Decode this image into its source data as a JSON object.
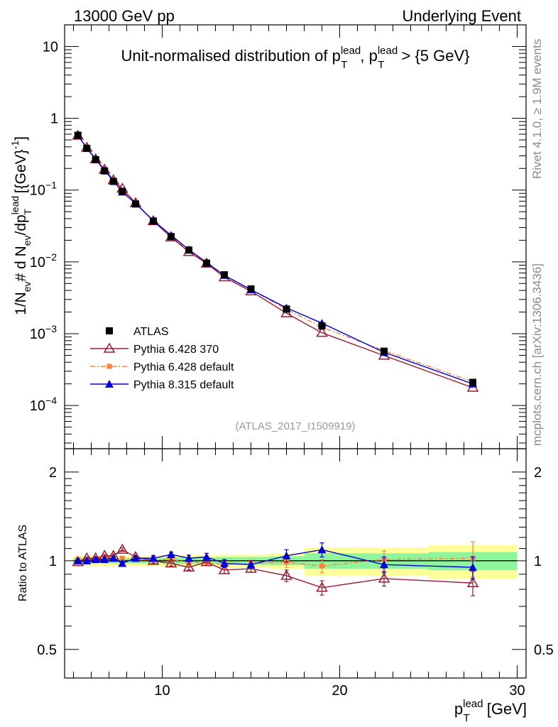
{
  "header": {
    "left": "13000 GeV pp",
    "right": "Underlying Event"
  },
  "side_text": {
    "rivet": "Rivet 4.1.0, ≥ 1.9M events",
    "mcplots": "mcplots.cern.ch [arXiv:1306.3436]"
  },
  "colors": {
    "atlas": "#000000",
    "py6_370": "#9b1b30",
    "py6_default": "#ff8040",
    "py8_default": "#0000dd",
    "band_green": "#8ff59c",
    "band_yellow": "#ffff99"
  },
  "chart_data": [
    {
      "type": "line",
      "title": "Unit-normalised distribution of p_T^lead, p_T^lead > {5 GeV}",
      "title_parts": {
        "prefix": "Unit-normalised distribution of p",
        "sup": "lead",
        "sub": "T",
        "mid": ", p",
        "suffix": " > {5 GeV}"
      },
      "ylabel": "1/N_ev # d N_ev/dp_T^lead [{GeV}^-1]",
      "ylabel_parts": {
        "a": "1/N",
        "a_sub": "ev",
        "b": "# d N",
        "b_sub": "ev",
        "c": "/dp",
        "c_sup": "lead",
        "c_sub": "T",
        "d": "[{GeV}",
        "d_sup": "-1",
        "e": "]"
      },
      "yscale": "log",
      "ylim": [
        2.5e-05,
        20
      ],
      "xlim": [
        4.5,
        30.5
      ],
      "y_ticks": [
        {
          "v": 10,
          "base": "10",
          "exp": ""
        },
        {
          "v": 1,
          "base": "1",
          "exp": ""
        },
        {
          "v": 0.1,
          "base": "10",
          "exp": "−1"
        },
        {
          "v": 0.01,
          "base": "10",
          "exp": "−2"
        },
        {
          "v": 0.001,
          "base": "10",
          "exp": "−3"
        },
        {
          "v": 0.0001,
          "base": "10",
          "exp": "−4"
        }
      ],
      "watermark": "(ATLAS_2017_I1509919)",
      "legend": {
        "position": "lower-left",
        "entries": [
          {
            "name": "ATLAS",
            "series": "atlas"
          },
          {
            "name": "Pythia 6.428 370",
            "series": "py6_370"
          },
          {
            "name": "Pythia 6.428 default",
            "series": "py6_default"
          },
          {
            "name": "Pythia 8.315 default",
            "series": "py8_default"
          }
        ]
      },
      "x": [
        5.25,
        5.75,
        6.25,
        6.75,
        7.25,
        7.75,
        8.5,
        9.5,
        10.5,
        11.5,
        12.5,
        13.5,
        15.0,
        17.0,
        19.0,
        22.5,
        27.5
      ],
      "series": [
        {
          "name": "ATLAS",
          "key": "atlas",
          "marker": "square",
          "values": [
            0.58,
            0.38,
            0.265,
            0.185,
            0.132,
            0.096,
            0.064,
            0.037,
            0.0225,
            0.0146,
            0.0096,
            0.0066,
            0.0042,
            0.0022,
            0.00128,
            0.00057,
            0.00021
          ]
        },
        {
          "name": "Pythia 6.428 370",
          "key": "py6_370",
          "marker": "open-triangle",
          "values": [
            0.573,
            0.39,
            0.27,
            0.193,
            0.138,
            0.105,
            0.066,
            0.037,
            0.022,
            0.0138,
            0.0095,
            0.0061,
            0.0039,
            0.00193,
            0.00103,
            0.000495,
            0.000177
          ]
        },
        {
          "name": "Pythia 6.428 default",
          "key": "py6_default",
          "marker": "small-square",
          "values": [
            0.585,
            0.385,
            0.268,
            0.19,
            0.135,
            0.098,
            0.065,
            0.0372,
            0.0227,
            0.0145,
            0.0095,
            0.0064,
            0.0041,
            0.00218,
            0.00123,
            0.00058,
            0.000215
          ]
        },
        {
          "name": "Pythia 8.315 default",
          "key": "py8_default",
          "marker": "filled-triangle",
          "values": [
            0.58,
            0.382,
            0.268,
            0.188,
            0.134,
            0.094,
            0.065,
            0.0375,
            0.0235,
            0.0148,
            0.0098,
            0.0065,
            0.0041,
            0.00229,
            0.0014,
            0.00055,
            0.0002
          ]
        }
      ]
    },
    {
      "type": "line",
      "title": "",
      "ylabel": "Ratio to ATLAS",
      "xlabel": "p_T^lead [GeV]",
      "xlabel_parts": {
        "a": "p",
        "sup": "lead",
        "sub": "T",
        "b": " [GeV]"
      },
      "yscale": "log",
      "ylim": [
        0.4,
        2.4
      ],
      "xlim": [
        4.5,
        30.5
      ],
      "y_ticks": [
        {
          "v": 2,
          "label": "2"
        },
        {
          "v": 1,
          "label": "1"
        },
        {
          "v": 0.5,
          "label": "0.5"
        }
      ],
      "x_ticks": [
        {
          "v": 10,
          "label": "10"
        },
        {
          "v": 20,
          "label": "20"
        },
        {
          "v": 30,
          "label": "30"
        }
      ],
      "bins": [
        [
          5,
          5.5
        ],
        [
          5.5,
          6
        ],
        [
          6,
          6.5
        ],
        [
          6.5,
          7
        ],
        [
          7,
          7.5
        ],
        [
          7.5,
          8
        ],
        [
          8,
          9
        ],
        [
          9,
          10
        ],
        [
          10,
          11
        ],
        [
          11,
          12
        ],
        [
          12,
          13
        ],
        [
          13,
          14
        ],
        [
          14,
          16
        ],
        [
          16,
          18
        ],
        [
          18,
          20
        ],
        [
          20,
          25
        ],
        [
          25,
          30
        ]
      ],
      "band_green": [
        0.02,
        0.02,
        0.02,
        0.02,
        0.02,
        0.02,
        0.02,
        0.02,
        0.025,
        0.025,
        0.025,
        0.03,
        0.03,
        0.035,
        0.06,
        0.06,
        0.07
      ],
      "band_yellow": [
        0.04,
        0.04,
        0.04,
        0.04,
        0.04,
        0.04,
        0.04,
        0.04,
        0.045,
        0.045,
        0.045,
        0.05,
        0.05,
        0.06,
        0.11,
        0.11,
        0.13
      ],
      "x": [
        5.25,
        5.75,
        6.25,
        6.75,
        7.25,
        7.75,
        8.5,
        9.5,
        10.5,
        11.5,
        12.5,
        13.5,
        15.0,
        17.0,
        19.0,
        22.5,
        27.5
      ],
      "series": [
        {
          "name": "Pythia 6.428 370",
          "key": "py6_370",
          "marker": "open-triangle",
          "values": [
            0.99,
            1.02,
            1.02,
            1.04,
            1.04,
            1.09,
            1.03,
            1.0,
            0.98,
            0.95,
            0.99,
            0.93,
            0.94,
            0.89,
            0.81,
            0.87,
            0.84
          ],
          "errors": [
            0.01,
            0.01,
            0.01,
            0.01,
            0.015,
            0.015,
            0.015,
            0.02,
            0.02,
            0.02,
            0.025,
            0.025,
            0.025,
            0.04,
            0.045,
            0.05,
            0.08
          ]
        },
        {
          "name": "Pythia 6.428 default",
          "key": "py6_default",
          "marker": "small-square",
          "values": [
            1.01,
            1.01,
            1.01,
            1.02,
            1.02,
            1.02,
            1.01,
            1.01,
            1.01,
            0.99,
            0.99,
            0.97,
            0.98,
            0.99,
            0.96,
            1.01,
            1.02
          ],
          "errors": [
            0.01,
            0.01,
            0.01,
            0.01,
            0.01,
            0.01,
            0.015,
            0.02,
            0.02,
            0.02,
            0.025,
            0.025,
            0.025,
            0.04,
            0.05,
            0.07,
            0.14
          ]
        },
        {
          "name": "Pythia 8.315 default",
          "key": "py8_default",
          "marker": "filled-triangle",
          "values": [
            1.0,
            1.0,
            1.01,
            1.01,
            1.02,
            0.98,
            1.02,
            1.02,
            1.05,
            1.02,
            1.03,
            0.98,
            0.97,
            1.04,
            1.09,
            0.97,
            0.95
          ],
          "errors": [
            0.01,
            0.01,
            0.01,
            0.01,
            0.015,
            0.015,
            0.015,
            0.02,
            0.02,
            0.025,
            0.03,
            0.03,
            0.03,
            0.05,
            0.06,
            0.06,
            0.08
          ]
        }
      ]
    }
  ]
}
